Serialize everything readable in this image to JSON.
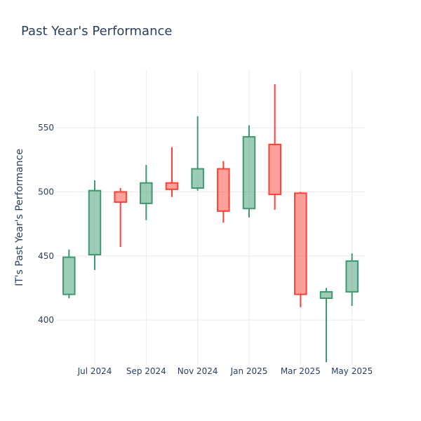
{
  "chart_data": {
    "type": "candlestick",
    "title": "Past Year's Performance",
    "xlabel": "",
    "ylabel": "IT's Past Year's Performance",
    "x_ticks": [
      "Jul 2024",
      "Sep 2024",
      "Nov 2024",
      "Jan 2025",
      "Mar 2025",
      "May 2025"
    ],
    "y_ticks": [
      400,
      450,
      500,
      550
    ],
    "ylim": [
      365,
      595
    ],
    "grid": true,
    "colors": {
      "up": "#3d9970",
      "down": "#ff4136"
    },
    "series": [
      {
        "period": "2024-06",
        "open": 420,
        "high": 455,
        "low": 417,
        "close": 449
      },
      {
        "period": "2024-07",
        "open": 451,
        "high": 509,
        "low": 439,
        "close": 501
      },
      {
        "period": "2024-08",
        "open": 500,
        "high": 503,
        "low": 457,
        "close": 492
      },
      {
        "period": "2024-09",
        "open": 491,
        "high": 521,
        "low": 478,
        "close": 507
      },
      {
        "period": "2024-10",
        "open": 507,
        "high": 535,
        "low": 496,
        "close": 502
      },
      {
        "period": "2024-11",
        "open": 503,
        "high": 559,
        "low": 501,
        "close": 518
      },
      {
        "period": "2024-12",
        "open": 518,
        "high": 524,
        "low": 476,
        "close": 485
      },
      {
        "period": "2025-01",
        "open": 487,
        "high": 552,
        "low": 480,
        "close": 543
      },
      {
        "period": "2025-02",
        "open": 537,
        "high": 584,
        "low": 486,
        "close": 498
      },
      {
        "period": "2025-03",
        "open": 499,
        "high": 500,
        "low": 410,
        "close": 420
      },
      {
        "period": "2025-04",
        "open": 417,
        "high": 425,
        "low": 367,
        "close": 422
      },
      {
        "period": "2025-05",
        "open": 422,
        "high": 452,
        "low": 411,
        "close": 446
      }
    ]
  }
}
